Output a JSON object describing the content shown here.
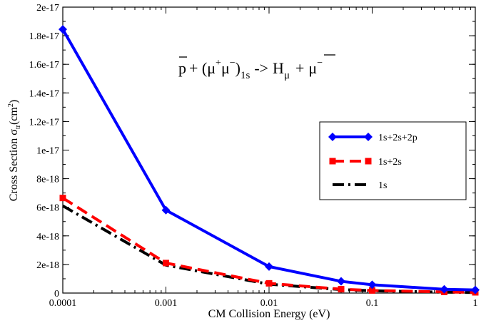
{
  "chart_data": {
    "type": "line",
    "title": "",
    "xlabel": "CM Collision Energy (eV)",
    "ylabel": {
      "main": "Cross Section σ",
      "sub": "tr",
      "unit_open": "(cm",
      "unit_sup": "2",
      "unit_close": ")"
    },
    "xscale": "log",
    "xlim": [
      0.0001,
      1
    ],
    "ylim": [
      0,
      2e-17
    ],
    "x_ticks": [
      {
        "value": 0.0001,
        "label": "0.0001"
      },
      {
        "value": 0.001,
        "label": "0.001"
      },
      {
        "value": 0.01,
        "label": "0.01"
      },
      {
        "value": 0.1,
        "label": "0.1"
      },
      {
        "value": 1,
        "label": "1"
      }
    ],
    "y_ticks": [
      {
        "value": 0,
        "label": "0"
      },
      {
        "value": 2e-18,
        "label": "2e-18"
      },
      {
        "value": 4e-18,
        "label": "4e-18"
      },
      {
        "value": 6e-18,
        "label": "6e-18"
      },
      {
        "value": 8e-18,
        "label": "8e-18"
      },
      {
        "value": 1e-17,
        "label": "1e-17"
      },
      {
        "value": 1.2e-17,
        "label": "1.2e-17"
      },
      {
        "value": 1.4e-17,
        "label": "1.4e-17"
      },
      {
        "value": 1.6e-17,
        "label": "1.6e-17"
      },
      {
        "value": 1.8e-17,
        "label": "1.8e-17"
      },
      {
        "value": 2e-17,
        "label": "2e-17"
      }
    ],
    "series": [
      {
        "name": "1s+2s+2p",
        "color": "#0000ff",
        "line": "solid",
        "marker": "diamond",
        "x": [
          0.0001,
          0.001,
          0.01,
          0.05,
          0.1,
          0.5,
          1
        ],
        "y": [
          1.845e-17,
          5.8e-18,
          1.85e-18,
          8.2e-19,
          5.8e-19,
          2.6e-19,
          2.2e-19
        ]
      },
      {
        "name": "1s+2s",
        "color": "#ff0000",
        "line": "dashed",
        "marker": "square",
        "x": [
          0.0001,
          0.001,
          0.01,
          0.05,
          0.1,
          0.5,
          1
        ],
        "y": [
          6.65e-18,
          2.1e-18,
          6.8e-19,
          2.7e-19,
          1.8e-19,
          8e-20,
          5e-20
        ]
      },
      {
        "name": "1s",
        "color": "#000000",
        "line": "dashdot",
        "marker": "none",
        "x": [
          0.0001,
          0.001,
          0.01,
          0.05,
          0.1,
          0.5,
          1
        ],
        "y": [
          6.1e-18,
          1.95e-18,
          6.2e-19,
          2.4e-19,
          1.6e-19,
          6e-20,
          4e-20
        ]
      }
    ],
    "legend": {
      "position": "right-middle",
      "boxed": true
    },
    "grid": false,
    "annotation": {
      "pbar": "p",
      "plus1": "+ (",
      "mu1": "μ",
      "plus_sup": "+",
      "mu2": "μ",
      "minus_sup": "−",
      "close": ")",
      "sub_1s": "1s",
      "arrow": "->",
      "hbar": "H",
      "sub_mu": "μ",
      "plus2": "+",
      "mu3": "μ",
      "minus_sup2": "−"
    }
  }
}
